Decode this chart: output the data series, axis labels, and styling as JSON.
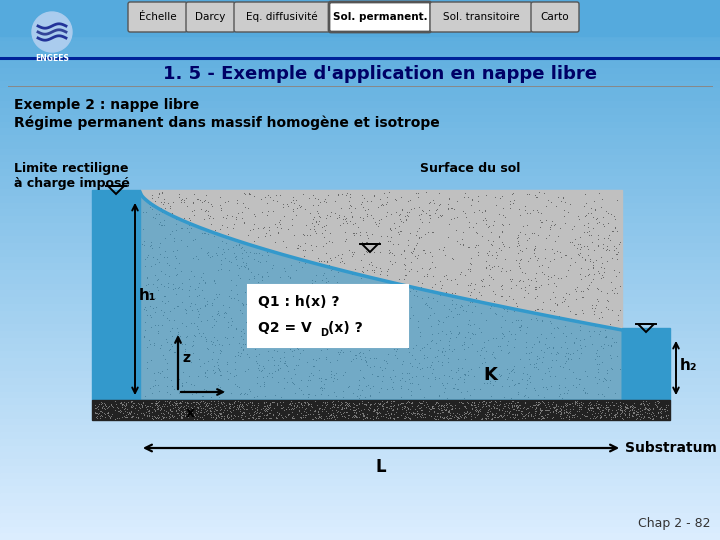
{
  "bg_top_color": "#55aadd",
  "bg_bottom_color": "#cce8f8",
  "tab_labels": [
    "Échelle",
    "Darcy",
    "Eq. diffusivité",
    "Sol. permanent.",
    "Sol. transitoire",
    "Carto"
  ],
  "tab_active": 3,
  "tab_bg": "#cccccc",
  "tab_active_bg": "#ffffff",
  "tab_border": "#555555",
  "subtitle": "1. 5 - Exemple d'application en nappe libre",
  "subtitle_color": "#000066",
  "title1": "Exemple 2 : nappe libre",
  "title2": "Régime permanent dans massif homogène et isotrope",
  "label_left_line1": "Limite rectiligne",
  "label_left_line2": "à charge imposé",
  "label_surface": "Surface du sol",
  "label_h1": "h₁",
  "label_h2": "h₂",
  "label_z": "z",
  "label_x": "x",
  "label_K": "K",
  "label_L": "L",
  "label_substratum": "Substratum",
  "label_Q1": "Q1 : h(x) ?",
  "label_Q2_pre": "Q2 = V",
  "label_Q2_sub": "D",
  "label_Q2_post": "(x) ?",
  "chap": "Chap 2 - 82",
  "water_blue": "#3399cc",
  "aquifer_dot_color": "#888888",
  "aquifer_bg": "#c0c0c0",
  "substratum_dot": "#888888"
}
